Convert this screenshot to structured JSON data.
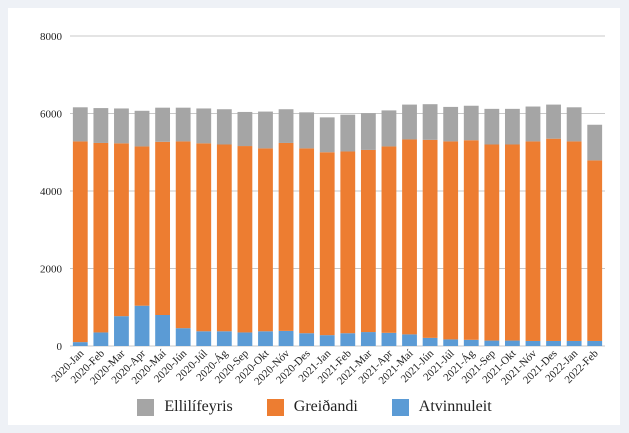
{
  "chart_data": {
    "type": "bar",
    "stacked": true,
    "categories": [
      "2020-Jan",
      "2020-Feb",
      "2020-Mar",
      "2020-Apr",
      "2020-Maí",
      "2020-Jún",
      "2020-Júl",
      "2020-Ág",
      "2020-Sep",
      "2020-Okt",
      "2020-Nóv",
      "2020-Des",
      "2021-Jan",
      "2021-Feb",
      "2021-Mar",
      "2021-Apr",
      "2021-Maí",
      "2021-Jún",
      "2021-Júl",
      "2021-Ág",
      "2021-Sep",
      "2021-Okt",
      "2021-Nóv",
      "2021-Des",
      "2022-Jan",
      "2022-Feb"
    ],
    "series": [
      {
        "name": "Atvinnuleit",
        "color": "#5b9bd5",
        "values": [
          100,
          350,
          770,
          1040,
          800,
          460,
          380,
          380,
          350,
          380,
          390,
          330,
          280,
          330,
          360,
          340,
          300,
          210,
          170,
          160,
          140,
          140,
          130,
          130,
          130,
          130
        ]
      },
      {
        "name": "Greiðandi",
        "color": "#ed7d31",
        "values": [
          5180,
          4890,
          4460,
          4110,
          4470,
          4820,
          4850,
          4820,
          4810,
          4720,
          4850,
          4770,
          4720,
          4690,
          4700,
          4810,
          5030,
          5110,
          5110,
          5150,
          5060,
          5060,
          5150,
          5220,
          5150,
          4660
        ]
      },
      {
        "name": "Ellilífeyris",
        "color": "#a5a5a5",
        "values": [
          880,
          900,
          900,
          920,
          880,
          870,
          900,
          910,
          880,
          950,
          870,
          930,
          900,
          950,
          950,
          930,
          900,
          920,
          890,
          890,
          920,
          920,
          900,
          880,
          880,
          920
        ]
      }
    ],
    "yticks": [
      0,
      2000,
      4000,
      6000,
      8000
    ],
    "ylim": [
      0,
      8000
    ],
    "grid": true,
    "legend_position": "bottom"
  }
}
